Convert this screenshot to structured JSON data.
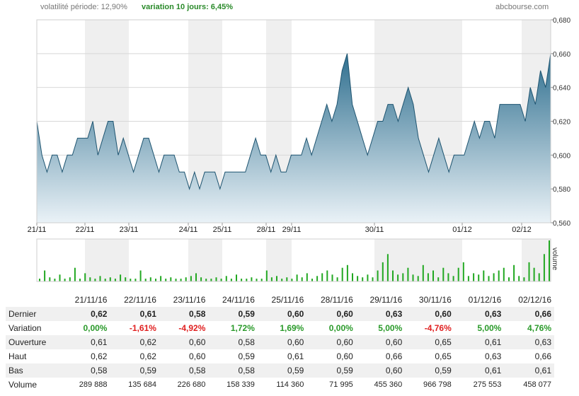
{
  "header": {
    "volatility": "volatilité période: 12,90%",
    "variation": "variation 10 jours: 6,45%",
    "source": "abcbourse.com"
  },
  "chart_data": {
    "type": "area",
    "ylim": [
      0.56,
      0.68
    ],
    "yticks": [
      "0,560",
      "0,580",
      "0,600",
      "0,620",
      "0,640",
      "0,660",
      "0,680"
    ],
    "x_labels": [
      "21/11",
      "22/11",
      "23/11",
      "24/11",
      "25/11",
      "28/11",
      "29/11",
      "30/11",
      "01/12",
      "02/12"
    ],
    "grid": true,
    "price": [
      0.62,
      0.6,
      0.59,
      0.6,
      0.6,
      0.59,
      0.6,
      0.6,
      0.61,
      0.61,
      0.61,
      0.62,
      0.6,
      0.61,
      0.62,
      0.62,
      0.6,
      0.61,
      0.6,
      0.59,
      0.6,
      0.61,
      0.61,
      0.6,
      0.59,
      0.6,
      0.6,
      0.6,
      0.59,
      0.59,
      0.58,
      0.59,
      0.58,
      0.59,
      0.59,
      0.59,
      0.58,
      0.59,
      0.59,
      0.59,
      0.59,
      0.59,
      0.6,
      0.61,
      0.6,
      0.6,
      0.59,
      0.6,
      0.59,
      0.59,
      0.6,
      0.6,
      0.6,
      0.61,
      0.6,
      0.61,
      0.62,
      0.63,
      0.62,
      0.63,
      0.65,
      0.66,
      0.63,
      0.62,
      0.61,
      0.6,
      0.61,
      0.62,
      0.62,
      0.63,
      0.63,
      0.62,
      0.63,
      0.64,
      0.63,
      0.61,
      0.6,
      0.59,
      0.6,
      0.61,
      0.6,
      0.59,
      0.6,
      0.6,
      0.6,
      0.61,
      0.62,
      0.61,
      0.62,
      0.62,
      0.61,
      0.63,
      0.63,
      0.63,
      0.63,
      0.63,
      0.62,
      0.64,
      0.63,
      0.65,
      0.64,
      0.66
    ],
    "volume": [
      2,
      8,
      3,
      2,
      5,
      2,
      3,
      10,
      2,
      6,
      3,
      2,
      4,
      2,
      3,
      2,
      5,
      3,
      2,
      2,
      8,
      2,
      3,
      2,
      4,
      2,
      3,
      2,
      2,
      3,
      4,
      6,
      3,
      2,
      2,
      3,
      2,
      4,
      2,
      5,
      2,
      2,
      3,
      2,
      2,
      8,
      3,
      4,
      2,
      3,
      2,
      5,
      3,
      6,
      2,
      4,
      6,
      8,
      5,
      3,
      10,
      12,
      6,
      4,
      3,
      5,
      3,
      8,
      14,
      20,
      8,
      5,
      6,
      10,
      5,
      4,
      12,
      6,
      8,
      3,
      10,
      6,
      4,
      10,
      14,
      4,
      6,
      5,
      8,
      4,
      6,
      8,
      10,
      3,
      12,
      4,
      3,
      14,
      10,
      6,
      20,
      30
    ]
  },
  "table": {
    "dates": [
      "21/11/16",
      "22/11/16",
      "23/11/16",
      "24/11/16",
      "25/11/16",
      "28/11/16",
      "29/11/16",
      "30/11/16",
      "01/12/16",
      "02/12/16"
    ],
    "rows": [
      {
        "label": "Dernier",
        "values": [
          "0,62",
          "0,61",
          "0,58",
          "0,59",
          "0,60",
          "0,60",
          "0,63",
          "0,60",
          "0,63",
          "0,66"
        ]
      },
      {
        "label": "Variation",
        "values": [
          "0,00%",
          "-1,61%",
          "-4,92%",
          "1,72%",
          "1,69%",
          "0,00%",
          "5,00%",
          "-4,76%",
          "5,00%",
          "4,76%"
        ]
      },
      {
        "label": "Ouverture",
        "values": [
          "0,61",
          "0,62",
          "0,60",
          "0,58",
          "0,60",
          "0,60",
          "0,60",
          "0,65",
          "0,61",
          "0,63"
        ]
      },
      {
        "label": "Haut",
        "values": [
          "0,62",
          "0,62",
          "0,60",
          "0,59",
          "0,61",
          "0,60",
          "0,66",
          "0,65",
          "0,63",
          "0,66"
        ]
      },
      {
        "label": "Bas",
        "values": [
          "0,58",
          "0,59",
          "0,58",
          "0,58",
          "0,59",
          "0,59",
          "0,60",
          "0,59",
          "0,61",
          "0,61"
        ]
      },
      {
        "label": "Volume",
        "values": [
          "289 888",
          "135 684",
          "226 680",
          "158 339",
          "114 360",
          "71 995",
          "455 360",
          "966 798",
          "275 553",
          "458 077"
        ]
      }
    ]
  },
  "volume_axis_label": "volume"
}
